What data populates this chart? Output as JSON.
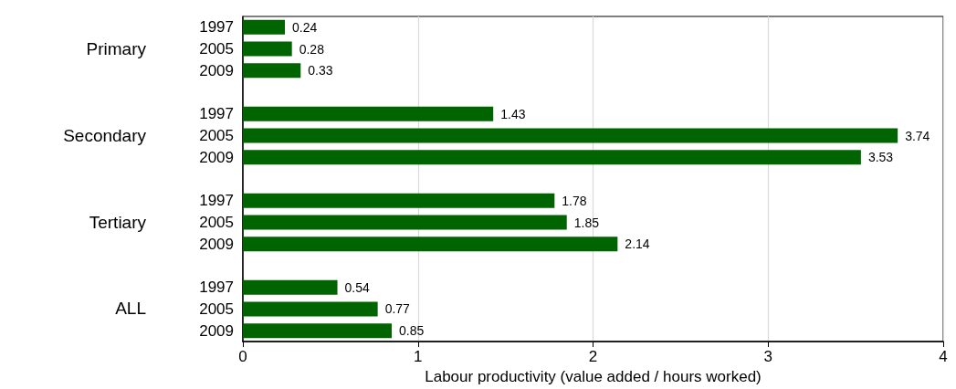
{
  "chart_data": {
    "type": "bar",
    "orientation": "horizontal",
    "xlabel": "Labour productivity (value added / hours worked)",
    "categories": [
      "1997",
      "2005",
      "2009",
      null,
      "1997",
      "2005",
      "2009",
      null,
      "1997",
      "2005",
      "2009",
      null,
      "1997",
      "2005",
      "2009"
    ],
    "values": [
      0.24,
      0.28,
      0.33,
      null,
      1.43,
      3.74,
      3.53,
      null,
      1.78,
      1.85,
      2.14,
      null,
      0.54,
      0.77,
      0.85
    ],
    "color": "#006400",
    "data_labels": true,
    "annotations": [
      "Primary",
      "Secondary",
      "Tertiary",
      "ALL"
    ],
    "xlim": [
      0,
      4
    ],
    "xticks": [
      0,
      1,
      2,
      3,
      4
    ],
    "grid": "x"
  }
}
